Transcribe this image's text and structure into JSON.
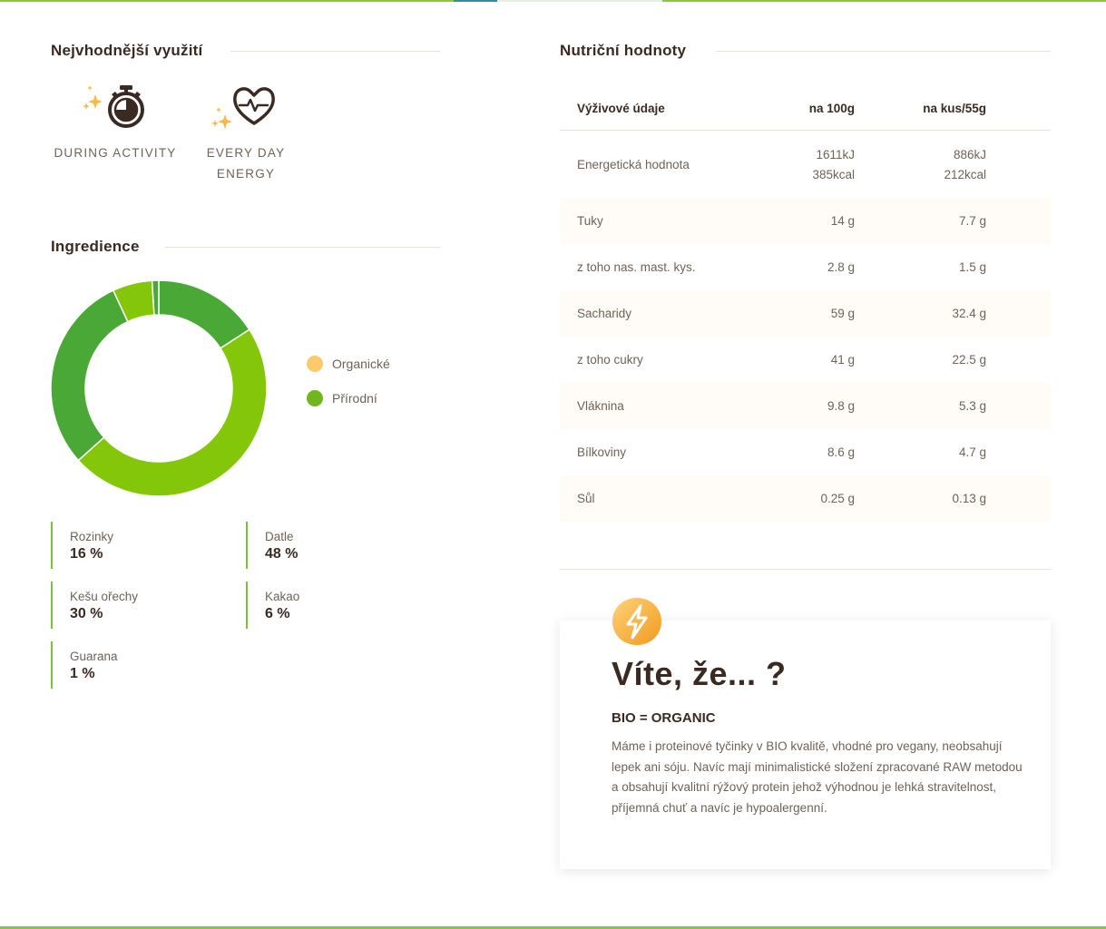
{
  "usage": {
    "title": "Nejvhodnější využití",
    "items": [
      {
        "label_line1": "DURING ACTIVITY",
        "label_line2": "",
        "icon": "stopwatch-icon"
      },
      {
        "label_line1": "EVERY DAY",
        "label_line2": "ENERGY",
        "icon": "heart-pulse-icon"
      }
    ]
  },
  "ingredients": {
    "title": "Ingredience",
    "legend": [
      {
        "label": "Organické",
        "color": "#fcc96b"
      },
      {
        "label": "Přírodní",
        "color": "#72b61f"
      }
    ],
    "items": [
      {
        "name": "Rozinky",
        "percent": "16 %"
      },
      {
        "name": "Datle",
        "percent": "48 %"
      },
      {
        "name": "Kešu ořechy",
        "percent": "30 %"
      },
      {
        "name": "Kakao",
        "percent": "6 %"
      },
      {
        "name": "Guarana",
        "percent": "1 %"
      }
    ]
  },
  "chart_data": {
    "type": "pie",
    "categories": [
      "Rozinky",
      "Datle",
      "Kešu ořechy",
      "Kakao",
      "Guarana"
    ],
    "values": [
      16,
      48,
      30,
      6,
      1
    ],
    "colors": [
      "#4aa936",
      "#84c70a",
      "#4aa936",
      "#84c70a",
      "#4aa936"
    ],
    "title": "",
    "legend_position": "right"
  },
  "nutrition": {
    "title": "Nutriční hodnoty",
    "headers": [
      "Výživové údaje",
      "na 100g",
      "na kus/55g"
    ],
    "energy": {
      "label": "Energetická hodnota",
      "kj_100": "1611kJ",
      "kcal_100": "385kcal",
      "kj_piece": "886kJ",
      "kcal_piece": "212kcal"
    },
    "rows": [
      {
        "label": "Tuky",
        "per100": "14 g",
        "perPiece": "7.7 g"
      },
      {
        "label": "z toho nas. mast. kys.",
        "per100": "2.8 g",
        "perPiece": "1.5 g"
      },
      {
        "label": "Sacharidy",
        "per100": "59 g",
        "perPiece": "32.4 g"
      },
      {
        "label": "z toho cukry",
        "per100": "41 g",
        "perPiece": "22.5 g"
      },
      {
        "label": "Vláknina",
        "per100": "9.8 g",
        "perPiece": "5.3 g"
      },
      {
        "label": "Bílkoviny",
        "per100": "8.6 g",
        "perPiece": "4.7 g"
      },
      {
        "label": "Sůl",
        "per100": "0.25 g",
        "perPiece": "0.13 g"
      }
    ]
  },
  "info": {
    "icon": "lightning-bolt-icon",
    "title": "Víte, že... ?",
    "subtitle": "BIO = ORGANIC",
    "text": "Máme i proteinové tyčinky v BIO kvalitě, vhodné pro vegany, neobsahují lepek ani sóju. Navíc mají minimalistické složení zpracované RAW metodou a obsahují kvalitní rýžový protein jehož výhodnou je lehká stravitelnost, příjemná chuť a navíc je hypoalergenní."
  }
}
